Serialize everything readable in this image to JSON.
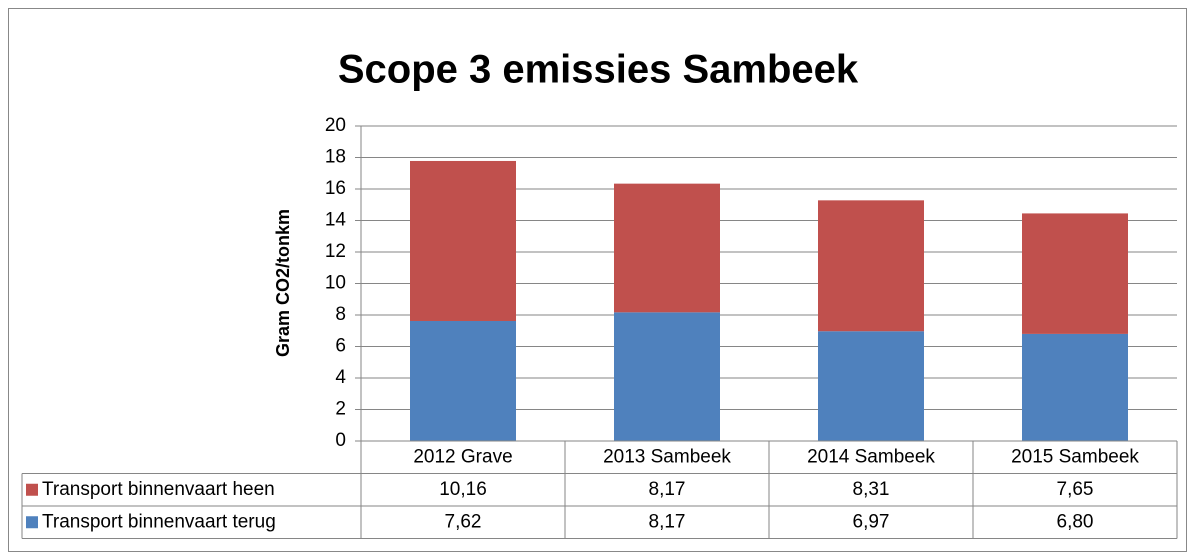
{
  "chart_data": {
    "type": "bar",
    "stacked": true,
    "title": "Scope 3 emissies Sambeek",
    "y_label": "Gram CO2/tonkm",
    "categories": [
      "2012 Grave",
      "2013 Sambeek",
      "2014 Sambeek",
      "2015 Sambeek"
    ],
    "series": [
      {
        "name": "Transport binnenvaart heen",
        "color": "#c0504d",
        "values": [
          10.16,
          8.17,
          8.31,
          7.65
        ],
        "value_labels": [
          "10,16",
          "8,17",
          "8,31",
          "7,65"
        ]
      },
      {
        "name": "Transport binnenvaart terug",
        "color": "#4f81bd",
        "values": [
          7.62,
          8.17,
          6.97,
          6.8
        ],
        "value_labels": [
          "7,62",
          "8,17",
          "6,97",
          "6,80"
        ]
      }
    ],
    "ylim": [
      0,
      20
    ],
    "yticks": [
      0,
      2,
      4,
      6,
      8,
      10,
      12,
      14,
      16,
      18,
      20
    ],
    "grid": true
  }
}
